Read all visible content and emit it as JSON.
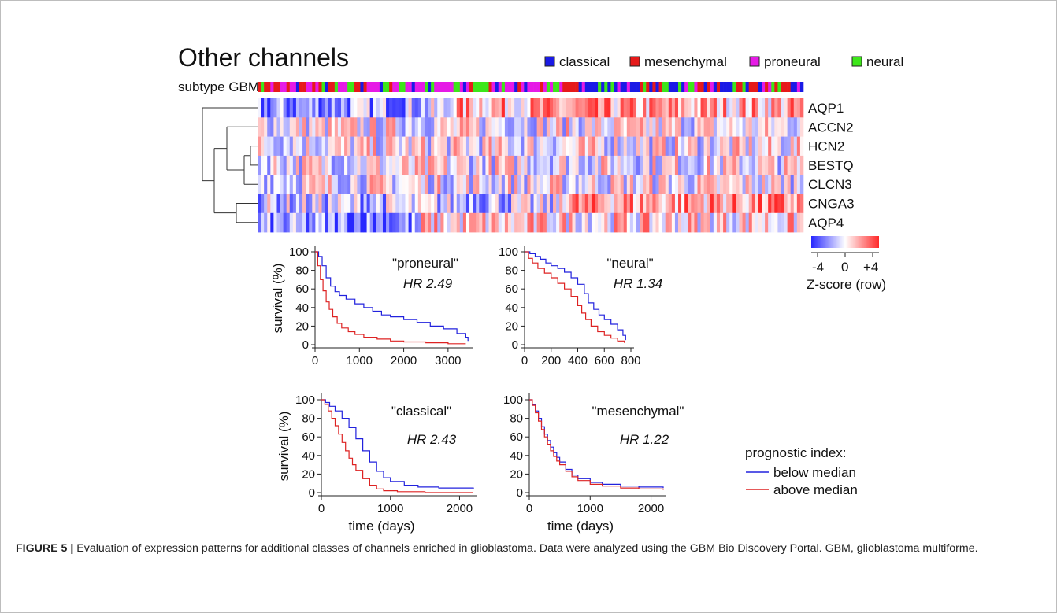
{
  "figure": {
    "title": "Other channels",
    "subtype_label": "subtype GBM",
    "legend": [
      {
        "label": "classical",
        "color": "#1a1ae6"
      },
      {
        "label": "mesenchymal",
        "color": "#e61a1a"
      },
      {
        "label": "proneural",
        "color": "#e61ae6"
      },
      {
        "label": "neural",
        "color": "#3de61a"
      }
    ],
    "genes": [
      "AQP1",
      "ACCN2",
      "HCN2",
      "BESTQ",
      "CLCN3",
      "CNGA3",
      "AQP4"
    ],
    "colorbar": {
      "min_label": "-4",
      "mid_label": "0",
      "max_label": "+4",
      "title": "Z-score (row)"
    },
    "km_legend": {
      "title": "prognostic index:",
      "below": "below median",
      "above": "above median",
      "below_color": "#2222dd",
      "above_color": "#dd2222"
    },
    "axis_labels": {
      "survival": "survival (%)",
      "time": "time (days)"
    }
  },
  "caption": {
    "label": "FIGURE 5 |",
    "text": " Evaluation of expression patterns for additional classes of channels enriched in glioblastoma. Data were analyzed using the GBM Bio Discovery Portal. GBM, glioblastoma multiforme."
  },
  "chart_data": [
    {
      "type": "heatmap",
      "rows": [
        "AQP1",
        "ACCN2",
        "HCN2",
        "BESTQ",
        "CLCN3",
        "CNGA3",
        "AQP4"
      ],
      "value_range": [
        -4,
        4
      ],
      "columns": 170,
      "colorbar_label": "Z-score (row)"
    },
    {
      "type": "line",
      "title": "\"proneural\"",
      "annotation": "HR 2.49",
      "xlabel": "",
      "ylabel": "survival (%)",
      "xlim": [
        0,
        3500
      ],
      "ylim": [
        0,
        100
      ],
      "xticks": [
        0,
        1000,
        2000,
        3000
      ],
      "yticks": [
        0,
        20,
        40,
        60,
        80,
        100
      ],
      "series": [
        {
          "name": "below median",
          "color": "#2222dd",
          "x": [
            0,
            80,
            160,
            250,
            350,
            450,
            550,
            700,
            900,
            1100,
            1300,
            1500,
            1700,
            2000,
            2300,
            2600,
            2900,
            3200,
            3400,
            3450
          ],
          "y": [
            100,
            95,
            85,
            72,
            63,
            57,
            53,
            49,
            44,
            40,
            36,
            32,
            30,
            27,
            24,
            20,
            17,
            12,
            8,
            4
          ]
        },
        {
          "name": "above median",
          "color": "#dd2222",
          "x": [
            0,
            60,
            120,
            180,
            250,
            320,
            400,
            500,
            600,
            750,
            900,
            1100,
            1400,
            1700,
            2000,
            2500,
            3000,
            3400
          ],
          "y": [
            100,
            85,
            70,
            58,
            46,
            38,
            30,
            23,
            18,
            14,
            11,
            8,
            6,
            4,
            3,
            2,
            1,
            1
          ]
        }
      ]
    },
    {
      "type": "line",
      "title": "\"neural\"",
      "annotation": "HR 1.34",
      "xlabel": "",
      "ylabel": "",
      "xlim": [
        0,
        800
      ],
      "ylim": [
        0,
        100
      ],
      "xticks": [
        0,
        200,
        400,
        600,
        800
      ],
      "yticks": [
        0,
        20,
        40,
        60,
        80,
        100
      ],
      "series": [
        {
          "name": "below median",
          "color": "#2222dd",
          "x": [
            0,
            40,
            80,
            120,
            160,
            200,
            250,
            300,
            350,
            400,
            450,
            480,
            520,
            560,
            600,
            650,
            700,
            740,
            760
          ],
          "y": [
            100,
            98,
            95,
            92,
            88,
            85,
            82,
            78,
            72,
            65,
            55,
            45,
            38,
            32,
            27,
            22,
            16,
            10,
            5
          ]
        },
        {
          "name": "above median",
          "color": "#dd2222",
          "x": [
            0,
            30,
            60,
            100,
            150,
            200,
            250,
            300,
            350,
            400,
            430,
            460,
            500,
            550,
            600,
            650,
            700,
            750
          ],
          "y": [
            100,
            93,
            88,
            82,
            77,
            72,
            66,
            60,
            52,
            42,
            34,
            27,
            20,
            14,
            10,
            7,
            4,
            2
          ]
        }
      ]
    },
    {
      "type": "line",
      "title": "\"classical\"",
      "annotation": "HR 2.43",
      "xlabel": "time (days)",
      "ylabel": "survival (%)",
      "xlim": [
        0,
        2200
      ],
      "ylim": [
        0,
        100
      ],
      "xticks": [
        0,
        1000,
        2000
      ],
      "yticks": [
        0,
        20,
        40,
        60,
        80,
        100
      ],
      "series": [
        {
          "name": "below median",
          "color": "#2222dd",
          "x": [
            0,
            60,
            120,
            200,
            300,
            400,
            500,
            600,
            700,
            800,
            900,
            1000,
            1200,
            1400,
            1700,
            2000,
            2200
          ],
          "y": [
            100,
            97,
            93,
            88,
            80,
            70,
            58,
            45,
            33,
            23,
            16,
            12,
            8,
            6,
            5,
            5,
            4
          ]
        },
        {
          "name": "above median",
          "color": "#dd2222",
          "x": [
            0,
            50,
            100,
            150,
            200,
            250,
            300,
            350,
            400,
            450,
            500,
            600,
            700,
            800,
            900,
            1100,
            1500,
            2200
          ],
          "y": [
            100,
            95,
            88,
            80,
            72,
            63,
            54,
            45,
            37,
            30,
            24,
            15,
            8,
            4,
            2,
            1,
            0,
            0
          ]
        }
      ]
    },
    {
      "type": "line",
      "title": "\"mesenchymal\"",
      "annotation": "HR 1.22",
      "xlabel": "time (days)",
      "ylabel": "",
      "xlim": [
        0,
        2200
      ],
      "ylim": [
        0,
        100
      ],
      "xticks": [
        0,
        1000,
        2000
      ],
      "yticks": [
        0,
        20,
        40,
        60,
        80,
        100
      ],
      "series": [
        {
          "name": "below median",
          "color": "#2222dd",
          "x": [
            0,
            50,
            100,
            150,
            200,
            250,
            300,
            350,
            400,
            450,
            500,
            600,
            700,
            800,
            1000,
            1200,
            1500,
            1800,
            2200
          ],
          "y": [
            100,
            95,
            88,
            80,
            71,
            63,
            56,
            49,
            43,
            38,
            33,
            25,
            19,
            15,
            11,
            9,
            7,
            6,
            5
          ]
        },
        {
          "name": "above median",
          "color": "#dd2222",
          "x": [
            0,
            50,
            100,
            150,
            200,
            250,
            300,
            350,
            400,
            450,
            500,
            600,
            700,
            800,
            1000,
            1200,
            1500,
            1800,
            2200
          ],
          "y": [
            100,
            94,
            86,
            77,
            68,
            60,
            52,
            45,
            39,
            34,
            30,
            23,
            17,
            13,
            9,
            7,
            5,
            4,
            3
          ]
        }
      ]
    }
  ]
}
